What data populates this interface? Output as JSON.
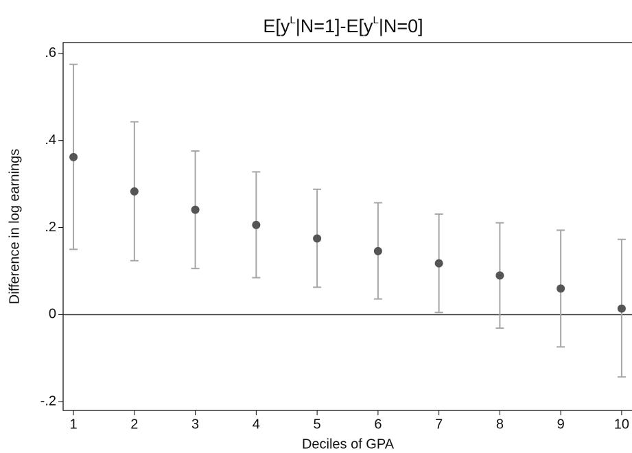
{
  "chart_data": {
    "type": "errorbar",
    "title": [
      {
        "text": "E[y"
      },
      {
        "text": "L",
        "superscript": true
      },
      {
        "text": "|N=1]-E[y"
      },
      {
        "text": "L",
        "superscript": true
      },
      {
        "text": "|N=0]"
      }
    ],
    "x_label": "Deciles of GPA",
    "y_label": "Difference in log earnings",
    "x": [
      1,
      2,
      3,
      4,
      5,
      6,
      7,
      8,
      9,
      10
    ],
    "series": [
      {
        "color": "#555555",
        "bar_color": "#a6a6a6",
        "values": [
          0.362,
          0.283,
          0.241,
          0.206,
          0.175,
          0.146,
          0.118,
          0.09,
          0.06,
          0.014
        ],
        "upper": [
          0.575,
          0.443,
          0.376,
          0.328,
          0.288,
          0.257,
          0.231,
          0.211,
          0.194,
          0.173
        ],
        "lower": [
          0.15,
          0.124,
          0.106,
          0.085,
          0.063,
          0.036,
          0.005,
          -0.031,
          -0.074,
          -0.143
        ]
      }
    ],
    "reference_line": 0,
    "xlim": [
      0.83,
      10.17
    ],
    "xticks": [
      1,
      2,
      3,
      4,
      5,
      6,
      7,
      8,
      9,
      10
    ],
    "ylim": [
      -0.22,
      0.625
    ],
    "yticks": [
      {
        "value": 0.6,
        "label": ".6"
      },
      {
        "value": 0.4,
        "label": ".4"
      },
      {
        "value": 0.2,
        "label": ".2"
      },
      0,
      {
        "value": -0.2,
        "label": "-.2"
      }
    ],
    "grid": false
  }
}
